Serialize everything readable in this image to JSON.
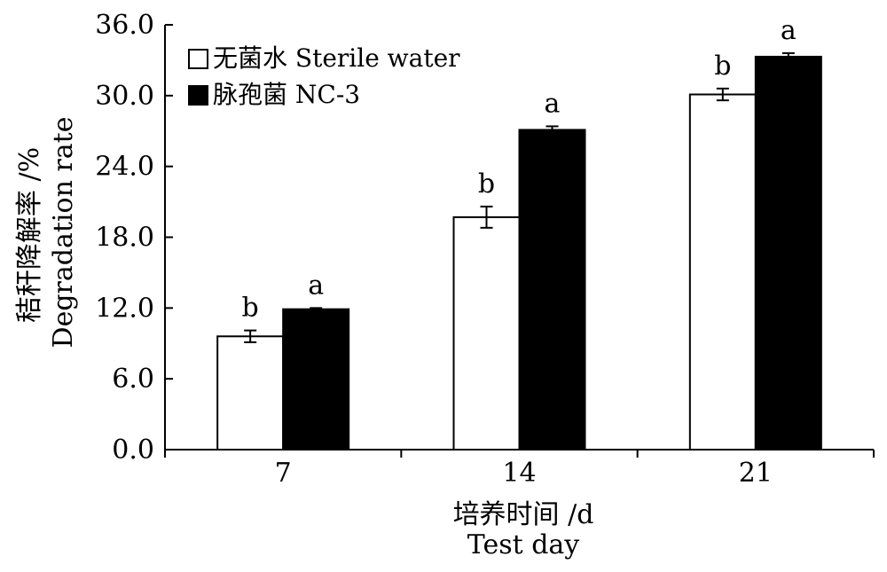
{
  "chart_data": {
    "type": "bar",
    "categories": [
      "7",
      "14",
      "21"
    ],
    "series": [
      {
        "name": "无菌水 Sterile water",
        "fill": "#ffffff",
        "values": [
          9.6,
          19.7,
          30.1
        ],
        "errors": [
          0.5,
          0.9,
          0.5
        ],
        "sig": [
          "b",
          "b",
          "b"
        ]
      },
      {
        "name": "脉孢菌 NC-3",
        "fill": "#000000",
        "values": [
          11.9,
          27.1,
          33.3
        ],
        "errors": [
          0.1,
          0.3,
          0.3
        ],
        "sig": [
          "a",
          "a",
          "a"
        ]
      }
    ],
    "ylim": [
      0,
      36
    ],
    "yticks": [
      "0.0",
      "6.0",
      "12.0",
      "18.0",
      "24.0",
      "30.0",
      "36.0"
    ],
    "xlabel_cn": "培养时间 /d",
    "xlabel_en": "Test day",
    "ylabel_cn": "秸秆降解率 /%",
    "ylabel_en": "Degradation rate",
    "legend_position": "top-left",
    "grid": false
  }
}
